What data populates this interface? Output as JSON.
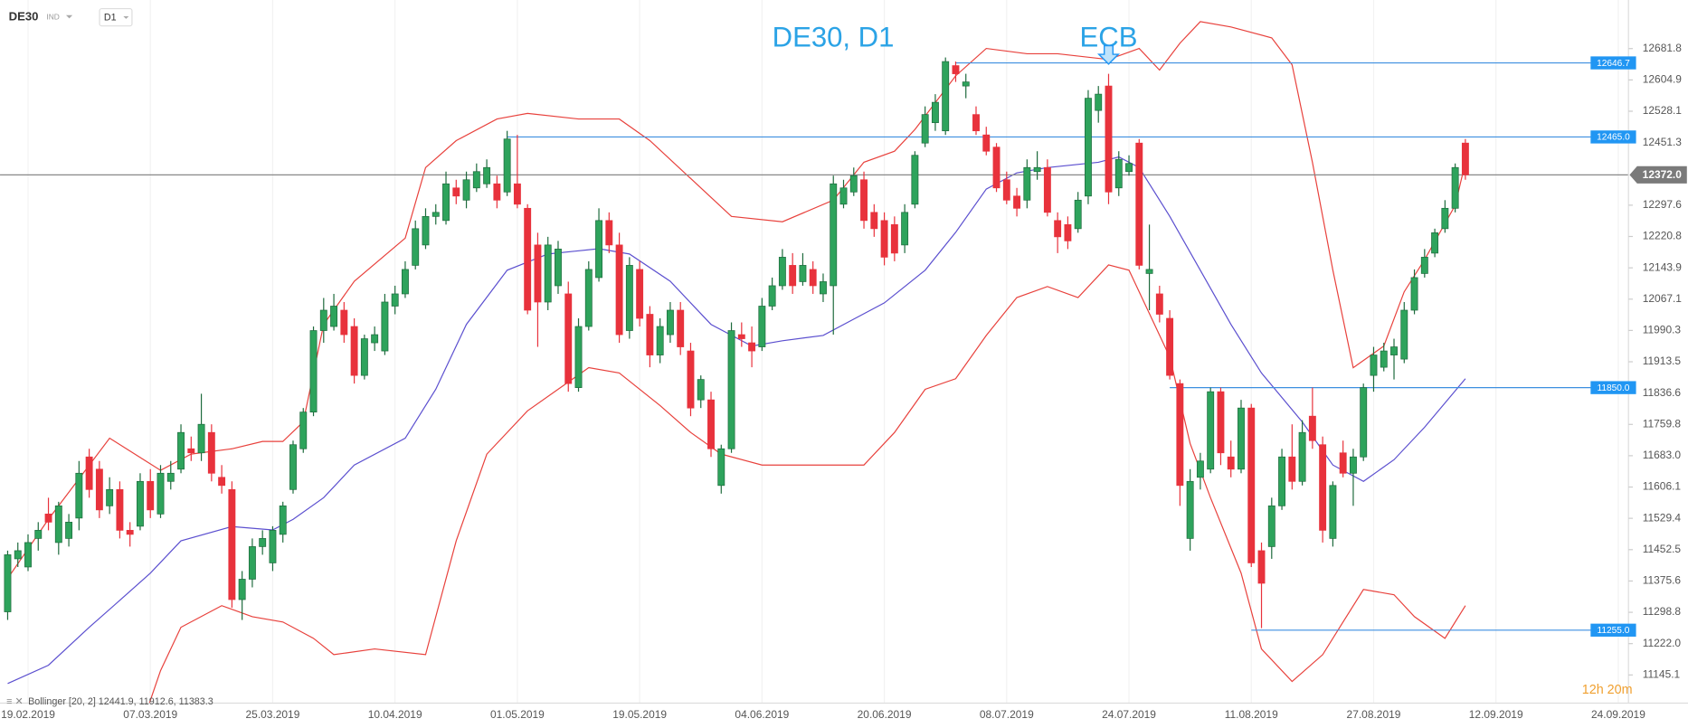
{
  "symbol": "DE30",
  "market": "IND",
  "timeframe": "D1",
  "chart_data": {
    "type": "candlestick",
    "title": "DE30, D1",
    "up_color": "#2ea35c",
    "down_color": "#e8323c",
    "grid": true,
    "ylim": [
      11076,
      12801
    ],
    "xlim": [
      -0.75,
      159
    ],
    "yticks": [
      11145.1,
      {
        "value": 11222,
        "label": "11222.0"
      },
      11298.8,
      11375.6,
      11452.5,
      11529.4,
      11606.1,
      {
        "value": 11683,
        "label": "11683.0"
      },
      11759.8,
      11836.6,
      11913.5,
      11990.3,
      12067.1,
      12143.9,
      12220.8,
      12297.6,
      12451.3,
      12528.1,
      12604.9,
      12681.8
    ],
    "xticks": [
      {
        "value": 2,
        "label": "19.02.2019"
      },
      {
        "value": 14,
        "label": "07.03.2019"
      },
      {
        "value": 26,
        "label": "25.03.2019"
      },
      {
        "value": 38,
        "label": "10.04.2019"
      },
      {
        "value": 50,
        "label": "01.05.2019"
      },
      {
        "value": 62,
        "label": "19.05.2019"
      },
      {
        "value": 74,
        "label": "04.06.2019"
      },
      {
        "value": 86,
        "label": "20.06.2019"
      },
      {
        "value": 98,
        "label": "08.07.2019"
      },
      {
        "value": 110,
        "label": "24.07.2019"
      },
      {
        "value": 122,
        "label": "11.08.2019"
      },
      {
        "value": 134,
        "label": "27.08.2019"
      },
      {
        "value": 146,
        "label": "12.09.2019"
      },
      {
        "value": 158,
        "label": "24.09.2019"
      }
    ],
    "ohlc": [
      [
        11300,
        11450,
        11280,
        11440
      ],
      [
        11430,
        11470,
        11410,
        11450
      ],
      [
        11410,
        11490,
        11400,
        11470
      ],
      [
        11480,
        11520,
        11450,
        11500
      ],
      [
        11540,
        11580,
        11500,
        11520
      ],
      [
        11470,
        11570,
        11440,
        11560
      ],
      [
        11480,
        11540,
        11460,
        11520
      ],
      [
        11530,
        11670,
        11500,
        11640
      ],
      [
        11680,
        11700,
        11580,
        11600
      ],
      [
        11650,
        11670,
        11530,
        11550
      ],
      [
        11560,
        11630,
        11540,
        11600
      ],
      [
        11600,
        11620,
        11480,
        11500
      ],
      [
        11500,
        11520,
        11460,
        11490
      ],
      [
        11510,
        11640,
        11500,
        11620
      ],
      [
        11620,
        11650,
        11530,
        11550
      ],
      [
        11540,
        11660,
        11530,
        11640
      ],
      [
        11620,
        11670,
        11600,
        11640
      ],
      [
        11650,
        11760,
        11640,
        11740
      ],
      [
        11700,
        11730,
        11670,
        11690
      ],
      [
        11690,
        11835,
        11670,
        11760
      ],
      [
        11740,
        11760,
        11620,
        11640
      ],
      [
        11630,
        11660,
        11590,
        11610
      ],
      [
        11600,
        11620,
        11310,
        11330
      ],
      [
        11330,
        11400,
        11280,
        11380
      ],
      [
        11380,
        11480,
        11360,
        11460
      ],
      [
        11460,
        11500,
        11440,
        11480
      ],
      [
        11420,
        11510,
        11400,
        11500
      ],
      [
        11490,
        11570,
        11470,
        11560
      ],
      [
        11600,
        11720,
        11590,
        11710
      ],
      [
        11700,
        11800,
        11690,
        11790
      ],
      [
        11790,
        12000,
        11780,
        11990
      ],
      [
        11990,
        12070,
        11960,
        12040
      ],
      [
        12000,
        12080,
        11990,
        12050
      ],
      [
        12040,
        12060,
        11960,
        11980
      ],
      [
        12000,
        12020,
        11860,
        11880
      ],
      [
        11880,
        11980,
        11870,
        11970
      ],
      [
        11960,
        12000,
        11940,
        11980
      ],
      [
        11940,
        12080,
        11930,
        12060
      ],
      [
        12050,
        12100,
        12030,
        12080
      ],
      [
        12080,
        12160,
        12070,
        12140
      ],
      [
        12150,
        12260,
        12140,
        12240
      ],
      [
        12200,
        12290,
        12190,
        12270
      ],
      [
        12270,
        12300,
        12250,
        12280
      ],
      [
        12260,
        12380,
        12250,
        12350
      ],
      [
        12340,
        12360,
        12300,
        12320
      ],
      [
        12310,
        12380,
        12290,
        12360
      ],
      [
        12340,
        12400,
        12330,
        12380
      ],
      [
        12350,
        12410,
        12340,
        12390
      ],
      [
        12350,
        12370,
        12290,
        12310
      ],
      [
        12330,
        12480,
        12320,
        12460
      ],
      [
        12350,
        12470,
        12290,
        12300
      ],
      [
        12290,
        12300,
        12030,
        12040
      ],
      [
        12200,
        12230,
        11950,
        12060
      ],
      [
        12060,
        12220,
        12040,
        12200
      ],
      [
        12100,
        12210,
        12080,
        12190
      ],
      [
        12080,
        12110,
        11840,
        11860
      ],
      [
        11850,
        12020,
        11840,
        12000
      ],
      [
        12000,
        12160,
        11990,
        12140
      ],
      [
        12120,
        12290,
        12110,
        12260
      ],
      [
        12260,
        12280,
        12180,
        12200
      ],
      [
        12200,
        12230,
        11960,
        11980
      ],
      [
        11990,
        12170,
        11970,
        12150
      ],
      [
        12140,
        12160,
        12000,
        12020
      ],
      [
        12030,
        12050,
        11900,
        11930
      ],
      [
        11930,
        12020,
        11910,
        12000
      ],
      [
        11980,
        12060,
        11960,
        12040
      ],
      [
        12040,
        12060,
        11930,
        11950
      ],
      [
        11940,
        11960,
        11780,
        11800
      ],
      [
        11820,
        11880,
        11800,
        11870
      ],
      [
        11820,
        11840,
        11680,
        11700
      ],
      [
        11610,
        11710,
        11590,
        11700
      ],
      [
        11700,
        12010,
        11690,
        11990
      ],
      [
        11980,
        12010,
        11950,
        11970
      ],
      [
        11960,
        12000,
        11900,
        11940
      ],
      [
        11950,
        12070,
        11940,
        12050
      ],
      [
        12050,
        12120,
        12040,
        12100
      ],
      [
        12100,
        12190,
        12090,
        12170
      ],
      [
        12150,
        12180,
        12080,
        12100
      ],
      [
        12110,
        12180,
        12100,
        12150
      ],
      [
        12140,
        12160,
        12080,
        12100
      ],
      [
        12080,
        12130,
        12060,
        12110
      ],
      [
        12100,
        12370,
        11980,
        12350
      ],
      [
        12300,
        12360,
        12290,
        12340
      ],
      [
        12330,
        12390,
        12320,
        12370
      ],
      [
        12360,
        12380,
        12240,
        12260
      ],
      [
        12280,
        12300,
        12220,
        12240
      ],
      [
        12260,
        12280,
        12150,
        12170
      ],
      [
        12250,
        12270,
        12160,
        12180
      ],
      [
        12200,
        12300,
        12180,
        12280
      ],
      [
        12300,
        12430,
        12290,
        12420
      ],
      [
        12450,
        12540,
        12440,
        12520
      ],
      [
        12500,
        12570,
        12480,
        12550
      ],
      [
        12480,
        12660,
        12470,
        12650
      ],
      [
        12640,
        12650,
        12600,
        12620
      ],
      [
        12590,
        12620,
        12560,
        12600
      ],
      [
        12520,
        12540,
        12470,
        12480
      ],
      [
        12470,
        12490,
        12420,
        12430
      ],
      [
        12440,
        12450,
        12330,
        12340
      ],
      [
        12360,
        12380,
        12300,
        12310
      ],
      [
        12320,
        12340,
        12270,
        12290
      ],
      [
        12310,
        12410,
        12290,
        12390
      ],
      [
        12380,
        12430,
        12360,
        12390
      ],
      [
        12390,
        12410,
        12270,
        12280
      ],
      [
        12260,
        12280,
        12180,
        12220
      ],
      [
        12250,
        12270,
        12190,
        12210
      ],
      [
        12240,
        12330,
        12230,
        12310
      ],
      [
        12320,
        12580,
        12300,
        12560
      ],
      [
        12530,
        12590,
        12500,
        12570
      ],
      [
        12590,
        12620,
        12300,
        12330
      ],
      [
        12340,
        12430,
        12320,
        12410
      ],
      [
        12380,
        12420,
        12370,
        12400
      ],
      [
        12450,
        12460,
        12140,
        12150
      ],
      [
        12130,
        12250,
        12040,
        12140
      ],
      [
        12080,
        12100,
        12010,
        12030
      ],
      [
        12020,
        12040,
        11870,
        11880
      ],
      [
        11860,
        11870,
        11560,
        11610
      ],
      [
        11480,
        11650,
        11450,
        11620
      ],
      [
        11630,
        11690,
        11600,
        11670
      ],
      [
        11650,
        11850,
        11640,
        11840
      ],
      [
        11840,
        11850,
        11660,
        11690
      ],
      [
        11680,
        11720,
        11630,
        11650
      ],
      [
        11650,
        11820,
        11640,
        11800
      ],
      [
        11800,
        11810,
        11410,
        11420
      ],
      [
        11450,
        11470,
        11260,
        11370
      ],
      [
        11460,
        11580,
        11430,
        11560
      ],
      [
        11560,
        11700,
        11550,
        11680
      ],
      [
        11680,
        11760,
        11600,
        11620
      ],
      [
        11620,
        11770,
        11610,
        11740
      ],
      [
        11780,
        11850,
        11700,
        11720
      ],
      [
        11710,
        11730,
        11470,
        11500
      ],
      [
        11480,
        11620,
        11460,
        11610
      ],
      [
        11690,
        11720,
        11630,
        11640
      ],
      [
        11640,
        11700,
        11560,
        11680
      ],
      [
        11680,
        11860,
        11670,
        11850
      ],
      [
        11880,
        11950,
        11840,
        11930
      ],
      [
        11900,
        11960,
        11890,
        11940
      ],
      [
        11930,
        11970,
        11870,
        11950
      ],
      [
        11920,
        12060,
        11910,
        12040
      ],
      [
        12040,
        12140,
        12030,
        12120
      ],
      [
        12130,
        12190,
        12120,
        12170
      ],
      [
        12180,
        12240,
        12170,
        12230
      ],
      [
        12240,
        12310,
        12230,
        12290
      ],
      [
        12290,
        12400,
        12280,
        12390
      ],
      [
        12450,
        12460,
        12360,
        12372
      ]
    ],
    "bands": [
      {
        "color": "#e8413c",
        "x": [
          0,
          4,
          10,
          15,
          18,
          22,
          25,
          27,
          29,
          31,
          34,
          39,
          41,
          44,
          48,
          51,
          56,
          60,
          63,
          67,
          71,
          76,
          81,
          84,
          87,
          89,
          93,
          96,
          100,
          103,
          108,
          111,
          113,
          115,
          117,
          120,
          124,
          126,
          128,
          130,
          132,
          135,
          137,
          139,
          142,
          143
        ],
        "values": [
          11382,
          11527,
          11726,
          11647,
          11687,
          11700,
          11718,
          11718,
          11766,
          12005,
          12111,
          12217,
          12390,
          12456,
          12509,
          12523,
          12509,
          12509,
          12456,
          12363,
          12270,
          12257,
          12310,
          12403,
          12430,
          12483,
          12615,
          12682,
          12669,
          12669,
          12655,
          12682,
          12629,
          12695,
          12748,
          12735,
          12708,
          12642,
          12403,
          12138,
          11899,
          11952,
          12085,
          12164,
          12297,
          12403
        ]
      },
      {
        "color": "#5b4fcf",
        "x": [
          0,
          4,
          8,
          11,
          14,
          17,
          22,
          26,
          28,
          31,
          34,
          39,
          42,
          45,
          49,
          53,
          58,
          61,
          65,
          69,
          73,
          76,
          80,
          83,
          86,
          90,
          93,
          96,
          99,
          102,
          107,
          109,
          111,
          114,
          117,
          120,
          123,
          127,
          130,
          133,
          136,
          139,
          143
        ],
        "values": [
          11124,
          11169,
          11262,
          11328,
          11395,
          11474,
          11509,
          11501,
          11527,
          11580,
          11660,
          11726,
          11846,
          12005,
          12138,
          12178,
          12191,
          12178,
          12111,
          12005,
          11952,
          11965,
          11978,
          12018,
          12058,
          12138,
          12231,
          12337,
          12377,
          12390,
          12403,
          12416,
          12390,
          12270,
          12138,
          12005,
          11886,
          11766,
          11660,
          11620,
          11673,
          11753,
          11872
        ]
      },
      {
        "color": "#e8413c",
        "x": [
          13,
          15,
          17,
          21,
          24,
          27,
          30,
          32,
          36,
          41,
          44,
          47,
          51,
          57,
          60,
          64,
          67,
          70,
          74,
          80,
          84,
          87,
          90,
          93,
          96,
          99,
          102,
          105,
          108,
          110,
          112,
          114,
          116,
          118,
          121,
          123,
          126,
          129,
          131,
          133,
          136,
          138,
          141,
          143
        ],
        "values": [
          11010,
          11156,
          11262,
          11315,
          11288,
          11275,
          11235,
          11195,
          11209,
          11195,
          11474,
          11687,
          11793,
          11899,
          11886,
          11806,
          11740,
          11687,
          11660,
          11660,
          11660,
          11740,
          11846,
          11872,
          11978,
          12071,
          12098,
          12071,
          12151,
          12138,
          12032,
          11925,
          11713,
          11580,
          11395,
          11209,
          11129,
          11195,
          11275,
          11355,
          11342,
          11288,
          11235,
          11315
        ]
      }
    ],
    "levels": [
      {
        "value": 12646.7,
        "x": 93
      },
      {
        "value": 12465,
        "label": "12465.0",
        "x": 49
      },
      {
        "value": 11850,
        "label": "11850.0",
        "x": 114
      },
      {
        "value": 11255,
        "label": "11255.0",
        "x": 122
      }
    ],
    "price_line": {
      "value": 12372,
      "label": "12372.0"
    },
    "annotation": {
      "text": "ECB",
      "x": 108
    },
    "indicator_label": "Bollinger  [20, 2]  12441.9,  11912.6,  11383.3",
    "countdown": "12h 20m"
  }
}
